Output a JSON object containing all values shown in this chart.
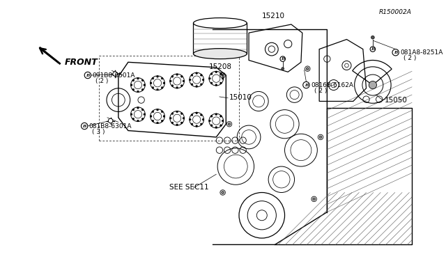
{
  "bg_color": "#ffffff",
  "line_color": "#000000",
  "ref_code": "R150002A",
  "labels": {
    "see_sec": "SEE SEC11",
    "front": "FRONT",
    "part_15050": "15050",
    "part_15010": "15010",
    "part_15208": "15208",
    "part_15210": "15210",
    "bolt1_code": "081B8-6301A",
    "bolt1_qty": "( 3 )",
    "bolt2_code": "091B8-6501A",
    "bolt2_qty": "( 2 )",
    "bolt3_code": "08168-6162A",
    "bolt3_qty": "( 2 )",
    "bolt4_code": "081A8-8251A",
    "bolt4_qty": "( 2 )"
  },
  "font_size_tiny": 5.5,
  "font_size_small": 6.5,
  "font_size_medium": 7.5,
  "font_size_large": 9
}
